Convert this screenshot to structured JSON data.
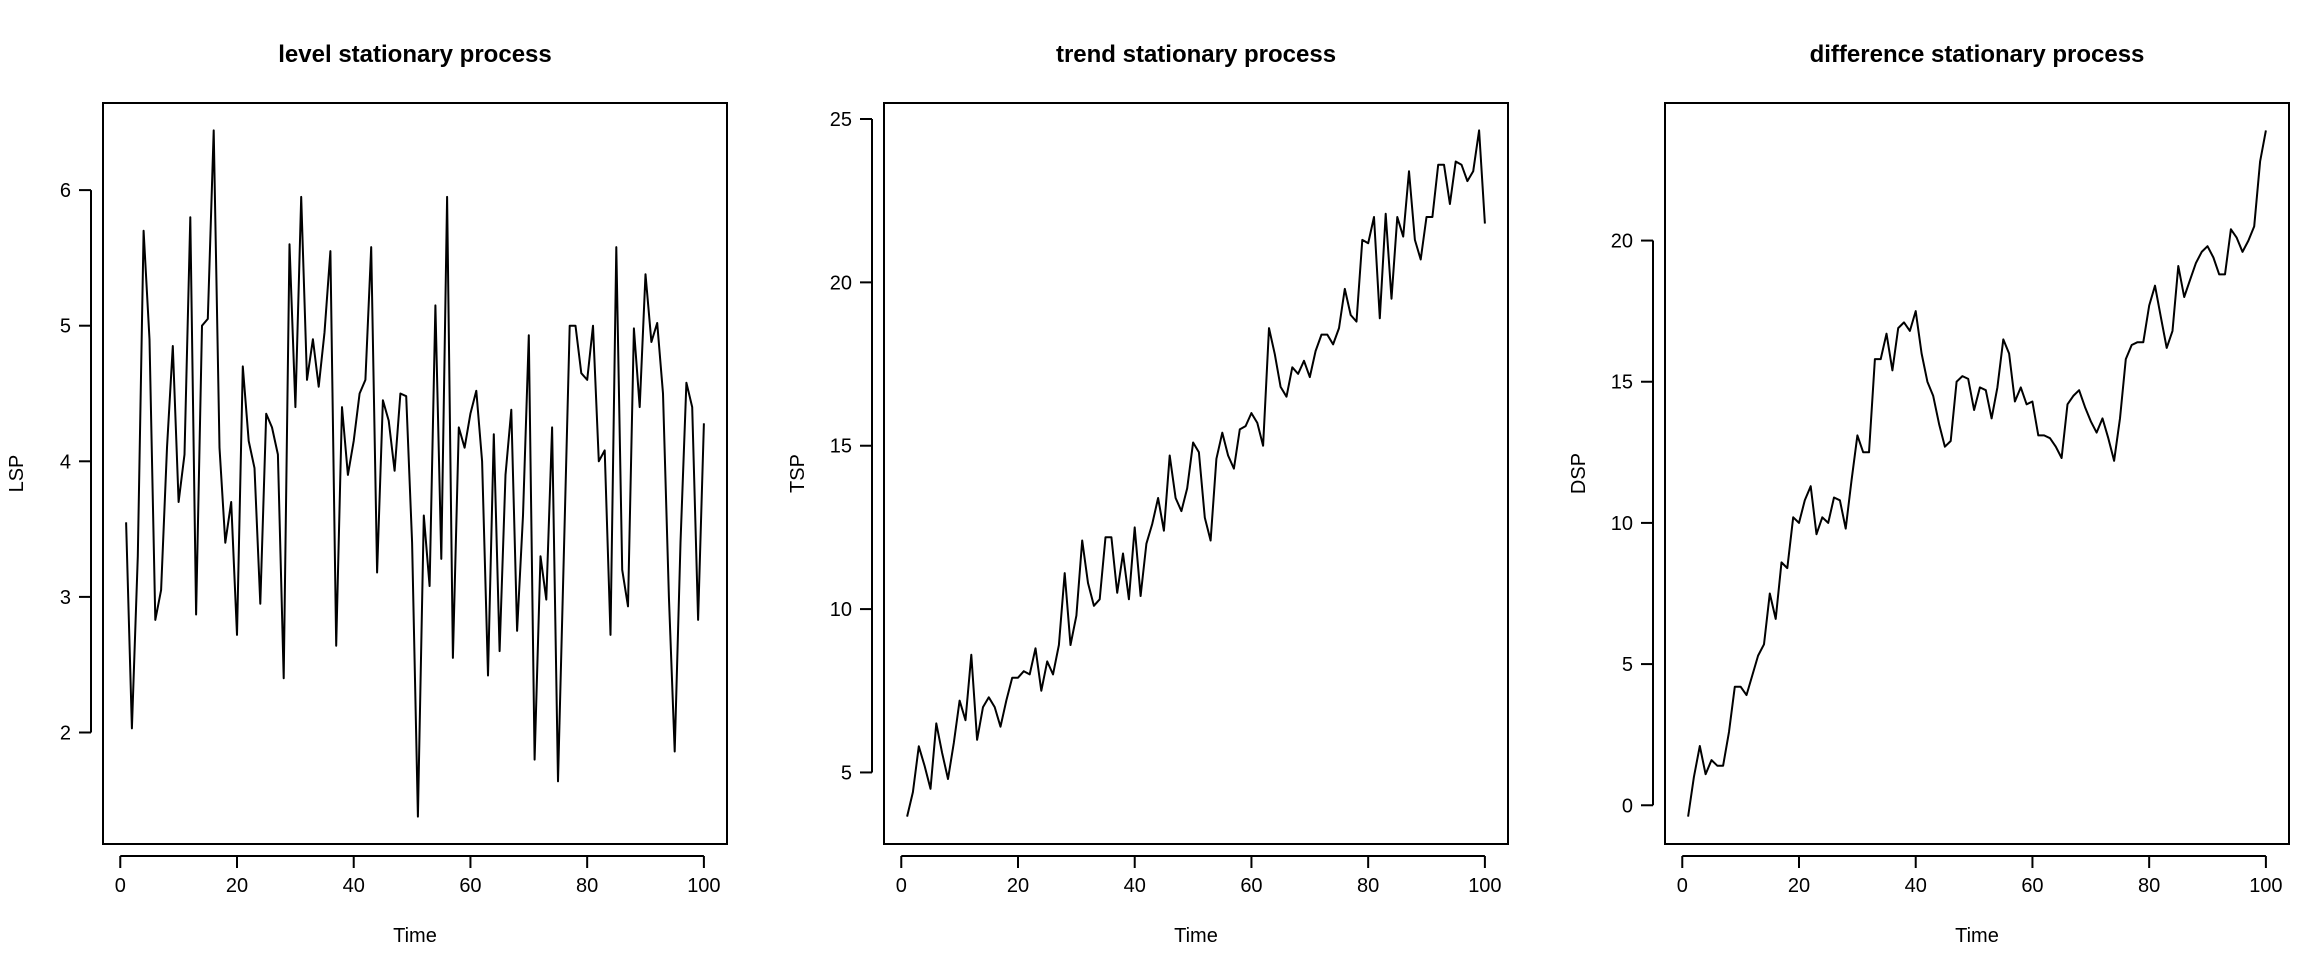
{
  "chart_data": [
    {
      "type": "line",
      "title": "level stationary process",
      "xlabel": "Time",
      "ylabel": "LSP",
      "xlim": [
        1,
        100
      ],
      "ylim": [
        1.38,
        6.44
      ],
      "xticks": [
        0,
        20,
        40,
        60,
        80,
        100
      ],
      "yticks": [
        2,
        3,
        4,
        5,
        6
      ],
      "grid": false,
      "x": [
        1,
        2,
        3,
        4,
        5,
        6,
        7,
        8,
        9,
        10,
        11,
        12,
        13,
        14,
        15,
        16,
        17,
        18,
        19,
        20,
        21,
        22,
        23,
        24,
        25,
        26,
        27,
        28,
        29,
        30,
        31,
        32,
        33,
        34,
        35,
        36,
        37,
        38,
        39,
        40,
        41,
        42,
        43,
        44,
        45,
        46,
        47,
        48,
        49,
        50,
        51,
        52,
        53,
        54,
        55,
        56,
        57,
        58,
        59,
        60,
        61,
        62,
        63,
        64,
        65,
        66,
        67,
        68,
        69,
        70,
        71,
        72,
        73,
        74,
        75,
        76,
        77,
        78,
        79,
        80,
        81,
        82,
        83,
        84,
        85,
        86,
        87,
        88,
        89,
        90,
        91,
        92,
        93,
        94,
        95,
        96,
        97,
        98,
        99,
        100
      ],
      "values": [
        3.55,
        2.03,
        3.3,
        5.7,
        4.9,
        2.83,
        3.05,
        4.1,
        4.85,
        3.7,
        4.05,
        5.8,
        2.87,
        5.0,
        5.05,
        6.44,
        4.1,
        3.4,
        3.7,
        2.72,
        4.7,
        4.15,
        3.95,
        2.95,
        4.35,
        4.25,
        4.05,
        2.4,
        5.6,
        4.4,
        5.95,
        4.6,
        4.9,
        4.55,
        4.95,
        5.55,
        2.64,
        4.4,
        3.9,
        4.15,
        4.5,
        4.6,
        5.58,
        3.18,
        4.45,
        4.3,
        3.93,
        4.5,
        4.48,
        3.4,
        1.38,
        3.6,
        3.08,
        5.15,
        3.28,
        5.95,
        2.55,
        4.25,
        4.1,
        4.35,
        4.52,
        4.0,
        2.42,
        4.2,
        2.6,
        3.9,
        4.38,
        2.75,
        3.6,
        4.93,
        1.8,
        3.3,
        2.98,
        4.25,
        1.64,
        3.3,
        5.0,
        5.0,
        4.65,
        4.6,
        5.0,
        4.0,
        4.08,
        2.72,
        5.58,
        3.2,
        2.93,
        4.98,
        4.4,
        5.38,
        4.88,
        5.02,
        4.5,
        3.0,
        1.86,
        3.4,
        4.58,
        4.4,
        2.83,
        4.28
      ]
    },
    {
      "type": "line",
      "title": "trend stationary process",
      "xlabel": "Time",
      "ylabel": "TSP",
      "xlim": [
        1,
        100
      ],
      "ylim": [
        3.65,
        24.65
      ],
      "xticks": [
        0,
        20,
        40,
        60,
        80,
        100
      ],
      "yticks": [
        5,
        10,
        15,
        20,
        25
      ],
      "grid": false,
      "x": [
        1,
        2,
        3,
        4,
        5,
        6,
        7,
        8,
        9,
        10,
        11,
        12,
        13,
        14,
        15,
        16,
        17,
        18,
        19,
        20,
        21,
        22,
        23,
        24,
        25,
        26,
        27,
        28,
        29,
        30,
        31,
        32,
        33,
        34,
        35,
        36,
        37,
        38,
        39,
        40,
        41,
        42,
        43,
        44,
        45,
        46,
        47,
        48,
        49,
        50,
        51,
        52,
        53,
        54,
        55,
        56,
        57,
        58,
        59,
        60,
        61,
        62,
        63,
        64,
        65,
        66,
        67,
        68,
        69,
        70,
        71,
        72,
        73,
        74,
        75,
        76,
        77,
        78,
        79,
        80,
        81,
        82,
        83,
        84,
        85,
        86,
        87,
        88,
        89,
        90,
        91,
        92,
        93,
        94,
        95,
        96,
        97,
        98,
        99,
        100
      ],
      "values": [
        3.65,
        4.4,
        5.8,
        5.2,
        4.5,
        6.5,
        5.6,
        4.8,
        5.9,
        7.2,
        6.6,
        8.6,
        6.0,
        7.0,
        7.3,
        7.0,
        6.4,
        7.2,
        7.9,
        7.9,
        8.1,
        8.0,
        8.8,
        7.5,
        8.4,
        8.0,
        8.9,
        11.1,
        8.9,
        9.8,
        12.1,
        10.8,
        10.1,
        10.3,
        12.2,
        12.2,
        10.5,
        11.7,
        10.3,
        12.5,
        10.4,
        12.0,
        12.6,
        13.4,
        12.4,
        14.7,
        13.4,
        13.0,
        13.7,
        15.1,
        14.8,
        12.8,
        12.1,
        14.6,
        15.4,
        14.7,
        14.3,
        15.5,
        15.6,
        16.0,
        15.7,
        15.0,
        18.6,
        17.8,
        16.8,
        16.5,
        17.4,
        17.2,
        17.6,
        17.1,
        17.9,
        18.4,
        18.4,
        18.1,
        18.6,
        19.8,
        19.0,
        18.8,
        21.3,
        21.2,
        22.0,
        18.9,
        22.1,
        19.5,
        22.0,
        21.4,
        23.4,
        21.3,
        20.7,
        22.0,
        22.0,
        23.6,
        23.6,
        22.4,
        23.7,
        23.6,
        23.1,
        23.4,
        24.65,
        21.8
      ]
    },
    {
      "type": "line",
      "title": "difference stationary process",
      "xlabel": "Time",
      "ylabel": "DSP",
      "xlim": [
        1,
        100
      ],
      "ylim": [
        -0.4,
        23.9
      ],
      "xticks": [
        0,
        20,
        40,
        60,
        80,
        100
      ],
      "yticks": [
        0,
        5,
        10,
        15,
        20
      ],
      "grid": false,
      "x": [
        1,
        2,
        3,
        4,
        5,
        6,
        7,
        8,
        9,
        10,
        11,
        12,
        13,
        14,
        15,
        16,
        17,
        18,
        19,
        20,
        21,
        22,
        23,
        24,
        25,
        26,
        27,
        28,
        29,
        30,
        31,
        32,
        33,
        34,
        35,
        36,
        37,
        38,
        39,
        40,
        41,
        42,
        43,
        44,
        45,
        46,
        47,
        48,
        49,
        50,
        51,
        52,
        53,
        54,
        55,
        56,
        57,
        58,
        59,
        60,
        61,
        62,
        63,
        64,
        65,
        66,
        67,
        68,
        69,
        70,
        71,
        72,
        73,
        74,
        75,
        76,
        77,
        78,
        79,
        80,
        81,
        82,
        83,
        84,
        85,
        86,
        87,
        88,
        89,
        90,
        91,
        92,
        93,
        94,
        95,
        96,
        97,
        98,
        99,
        100
      ],
      "values": [
        -0.4,
        1.0,
        2.1,
        1.1,
        1.6,
        1.4,
        1.4,
        2.6,
        4.2,
        4.2,
        3.9,
        4.6,
        5.3,
        5.7,
        7.5,
        6.6,
        8.6,
        8.4,
        10.2,
        10.0,
        10.8,
        11.3,
        9.6,
        10.2,
        10.0,
        10.9,
        10.8,
        9.8,
        11.5,
        13.1,
        12.5,
        12.5,
        15.8,
        15.8,
        16.7,
        15.4,
        16.9,
        17.1,
        16.8,
        17.5,
        16.0,
        15.0,
        14.5,
        13.5,
        12.7,
        12.9,
        15.0,
        15.2,
        15.1,
        14.0,
        14.8,
        14.7,
        13.7,
        14.8,
        16.5,
        16.0,
        14.3,
        14.8,
        14.2,
        14.3,
        13.1,
        13.1,
        13.0,
        12.7,
        12.3,
        14.2,
        14.5,
        14.7,
        14.1,
        13.6,
        13.2,
        13.7,
        13.0,
        12.2,
        13.7,
        15.8,
        16.3,
        16.4,
        16.4,
        17.7,
        18.4,
        17.3,
        16.2,
        16.8,
        19.1,
        18.0,
        18.6,
        19.2,
        19.6,
        19.8,
        19.4,
        18.8,
        18.8,
        20.4,
        20.1,
        19.6,
        20.0,
        20.5,
        22.8,
        23.9
      ]
    }
  ]
}
